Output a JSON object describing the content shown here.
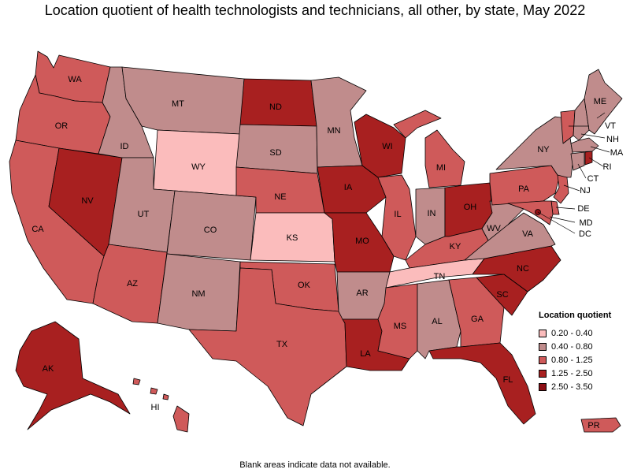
{
  "title": "Location quotient of health technologists and technicians, all other, by state, May 2022",
  "footnote": "Blank areas indicate data not available.",
  "colors": {
    "bin1": "#fbbcbc",
    "bin2": "#c08c8c",
    "bin3": "#cf5a5a",
    "bin4": "#a82020",
    "bin5": "#8c0e14"
  },
  "legend": {
    "title": "Location quotient",
    "items": [
      {
        "label": "0.20 - 0.40",
        "color": "#fbbcbc"
      },
      {
        "label": "0.40 - 0.80",
        "color": "#c08c8c"
      },
      {
        "label": "0.80 - 1.25",
        "color": "#cf5a5a"
      },
      {
        "label": "1.25 - 2.50",
        "color": "#a82020"
      },
      {
        "label": "2.50 - 3.50",
        "color": "#8c0e14"
      }
    ]
  },
  "states": {
    "WA": {
      "label": "WA",
      "bin": "0.80 - 1.25"
    },
    "OR": {
      "label": "OR",
      "bin": "0.80 - 1.25"
    },
    "CA": {
      "label": "CA",
      "bin": "0.80 - 1.25"
    },
    "NV": {
      "label": "NV",
      "bin": "1.25 - 2.50"
    },
    "ID": {
      "label": "ID",
      "bin": "0.40 - 0.80"
    },
    "MT": {
      "label": "MT",
      "bin": "0.40 - 0.80"
    },
    "WY": {
      "label": "WY",
      "bin": "0.20 - 0.40"
    },
    "UT": {
      "label": "UT",
      "bin": "0.40 - 0.80"
    },
    "CO": {
      "label": "CO",
      "bin": "0.40 - 0.80"
    },
    "AZ": {
      "label": "AZ",
      "bin": "0.80 - 1.25"
    },
    "NM": {
      "label": "NM",
      "bin": "0.40 - 0.80"
    },
    "ND": {
      "label": "ND",
      "bin": "1.25 - 2.50"
    },
    "SD": {
      "label": "SD",
      "bin": "0.40 - 0.80"
    },
    "NE": {
      "label": "NE",
      "bin": "0.80 - 1.25"
    },
    "KS": {
      "label": "KS",
      "bin": "0.20 - 0.40"
    },
    "OK": {
      "label": "OK",
      "bin": "0.80 - 1.25"
    },
    "TX": {
      "label": "TX",
      "bin": "0.80 - 1.25"
    },
    "MN": {
      "label": "MN",
      "bin": "0.40 - 0.80"
    },
    "IA": {
      "label": "IA",
      "bin": "1.25 - 2.50"
    },
    "MO": {
      "label": "MO",
      "bin": "1.25 - 2.50"
    },
    "AR": {
      "label": "AR",
      "bin": "0.40 - 0.80"
    },
    "LA": {
      "label": "LA",
      "bin": "1.25 - 2.50"
    },
    "WI": {
      "label": "WI",
      "bin": "1.25 - 2.50"
    },
    "IL": {
      "label": "IL",
      "bin": "0.80 - 1.25"
    },
    "MI": {
      "label": "MI",
      "bin": "0.80 - 1.25"
    },
    "IN": {
      "label": "IN",
      "bin": "0.40 - 0.80"
    },
    "OH": {
      "label": "OH",
      "bin": "1.25 - 2.50"
    },
    "KY": {
      "label": "KY",
      "bin": "0.80 - 1.25"
    },
    "TN": {
      "label": "TN",
      "bin": "0.20 - 0.40"
    },
    "MS": {
      "label": "MS",
      "bin": "0.80 - 1.25"
    },
    "AL": {
      "label": "AL",
      "bin": "0.40 - 0.80"
    },
    "GA": {
      "label": "GA",
      "bin": "0.80 - 1.25"
    },
    "FL": {
      "label": "FL",
      "bin": "1.25 - 2.50"
    },
    "SC": {
      "label": "SC",
      "bin": "1.25 - 2.50"
    },
    "NC": {
      "label": "NC",
      "bin": "1.25 - 2.50"
    },
    "VA": {
      "label": "VA",
      "bin": "0.40 - 0.80"
    },
    "WV": {
      "label": "WV",
      "bin": "0.40 - 0.80"
    },
    "PA": {
      "label": "PA",
      "bin": "0.80 - 1.25"
    },
    "NY": {
      "label": "NY",
      "bin": "0.40 - 0.80"
    },
    "ME": {
      "label": "ME",
      "bin": "0.40 - 0.80"
    },
    "VT": {
      "label": "VT",
      "bin": "0.80 - 1.25"
    },
    "NH": {
      "label": "NH",
      "bin": "0.40 - 0.80"
    },
    "MA": {
      "label": "MA",
      "bin": "0.40 - 0.80"
    },
    "RI": {
      "label": "RI",
      "bin": "1.25 - 2.50"
    },
    "CT": {
      "label": "CT",
      "bin": "0.40 - 0.80"
    },
    "NJ": {
      "label": "NJ",
      "bin": "0.80 - 1.25"
    },
    "DE": {
      "label": "DE",
      "bin": "0.80 - 1.25"
    },
    "MD": {
      "label": "MD",
      "bin": "0.80 - 1.25"
    },
    "DC": {
      "label": "DC",
      "bin": "2.50 - 3.50"
    },
    "AK": {
      "label": "AK",
      "bin": "1.25 - 2.50"
    },
    "HI": {
      "label": "HI",
      "bin": "0.80 - 1.25"
    },
    "PR": {
      "label": "PR",
      "bin": "0.80 - 1.25"
    }
  }
}
